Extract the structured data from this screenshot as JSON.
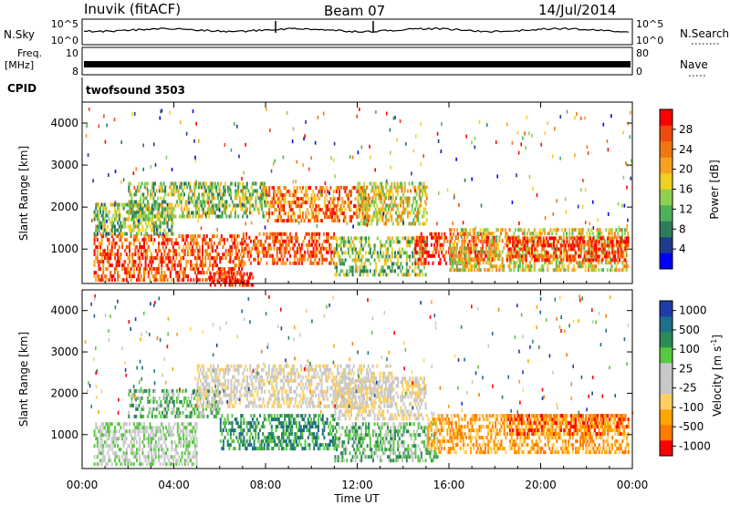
{
  "header": {
    "station": "Inuvik (fitACF)",
    "beam": "Beam 07",
    "date": "14/Jul/2014"
  },
  "top_panels": {
    "nsky_label": "N.Sky",
    "nsky_ticks": [
      "10^5",
      "10^0"
    ],
    "nsearch_label": "N.Search",
    "freq_label_1": "Freq.",
    "freq_label_2": "[MHz]",
    "freq_ticks": [
      "10",
      "8"
    ],
    "nave_label": "Nave",
    "nave_ticks": [
      "80",
      "0"
    ],
    "cpid_label": "CPID",
    "cpid_value": "twofsound 3503"
  },
  "colors": {
    "power_scale": [
      "#0000ff",
      "#1e3c8c",
      "#2e7d5a",
      "#4fb05a",
      "#8fd14f",
      "#f0d020",
      "#f7a020",
      "#f07810",
      "#f04a10",
      "#ff0000"
    ],
    "velocity_scale": [
      "#ff0000",
      "#ff7a00",
      "#ffa500",
      "#ffd060",
      "#c8c8c8",
      "#c8c8c8",
      "#58c840",
      "#2e8b57",
      "#1e6e8c",
      "#1e3caa"
    ]
  },
  "chart_data": [
    {
      "type": "heatmap",
      "name": "power-panel",
      "ylabel": "Slant Range [km]",
      "yticks": [
        "4000",
        "3000",
        "2000",
        "1000"
      ],
      "ytick_values": [
        4000,
        3000,
        2000,
        1000
      ],
      "ylim": [
        180,
        4500
      ],
      "xlim": [
        0,
        24
      ],
      "colorbar": {
        "label": "Power [dB]",
        "ticks": [
          "28",
          "24",
          "20",
          "16",
          "12",
          "8",
          "4"
        ],
        "tick_values": [
          28,
          24,
          20,
          16,
          12,
          8,
          4
        ],
        "range": [
          0,
          32
        ]
      },
      "bands": [
        {
          "t0": 0.5,
          "t1": 7.0,
          "r0": 300,
          "r1": 1350,
          "v": 26
        },
        {
          "t0": 0.5,
          "t1": 4.0,
          "r0": 1350,
          "r1": 2100,
          "v": 13
        },
        {
          "t0": 2.0,
          "t1": 8.0,
          "r0": 1800,
          "r1": 2600,
          "v": 14
        },
        {
          "t0": 7.0,
          "t1": 11.0,
          "r0": 700,
          "r1": 1400,
          "v": 26
        },
        {
          "t0": 8.0,
          "t1": 12.5,
          "r0": 1700,
          "r1": 2500,
          "v": 24
        },
        {
          "t0": 11.0,
          "t1": 15.0,
          "r0": 400,
          "r1": 1300,
          "v": 14
        },
        {
          "t0": 12.0,
          "t1": 15.0,
          "r0": 1600,
          "r1": 2600,
          "v": 17
        },
        {
          "t0": 14.5,
          "t1": 18.0,
          "r0": 700,
          "r1": 1400,
          "v": 29
        },
        {
          "t0": 16.0,
          "t1": 23.8,
          "r0": 500,
          "r1": 1500,
          "v": 18
        },
        {
          "t0": 18.5,
          "t1": 23.8,
          "r0": 750,
          "r1": 1300,
          "v": 29
        },
        {
          "t0": 5.5,
          "t1": 7.5,
          "r0": 180,
          "r1": 450,
          "v": 30
        }
      ]
    },
    {
      "type": "heatmap",
      "name": "velocity-panel",
      "ylabel": "Slant Range [km]",
      "yticks": [
        "4000",
        "3000",
        "2000",
        "1000"
      ],
      "ytick_values": [
        4000,
        3000,
        2000,
        1000
      ],
      "ylim": [
        180,
        4500
      ],
      "xlabel": "Time UT",
      "xticks": [
        "00:00",
        "04:00",
        "08:00",
        "12:00",
        "16:00",
        "20:00",
        "00:00"
      ],
      "xtick_values": [
        0,
        4,
        8,
        12,
        16,
        20,
        24
      ],
      "xlim": [
        0,
        24
      ],
      "colorbar": {
        "label": "Velocity [m s",
        "label_sup": "-1",
        "label_end": "]",
        "ticks": [
          "1000",
          "500",
          "100",
          "25",
          "-25",
          "-100",
          "-500",
          "-1000"
        ]
      },
      "bands": [
        {
          "t0": 0.5,
          "t1": 5.0,
          "r0": 300,
          "r1": 1300,
          "v": 5
        },
        {
          "t0": 2.0,
          "t1": 6.0,
          "r0": 1400,
          "r1": 2100,
          "v": 6
        },
        {
          "t0": 5.0,
          "t1": 13.5,
          "r0": 1700,
          "r1": 2700,
          "v": 4
        },
        {
          "t0": 6.0,
          "t1": 11.0,
          "r0": 700,
          "r1": 1500,
          "v": 7
        },
        {
          "t0": 11.0,
          "t1": 15.0,
          "r0": 1400,
          "r1": 2400,
          "v": 4
        },
        {
          "t0": 11.0,
          "t1": 15.5,
          "r0": 400,
          "r1": 1300,
          "v": 6
        },
        {
          "t0": 15.0,
          "t1": 23.8,
          "r0": 600,
          "r1": 1500,
          "v": 2
        },
        {
          "t0": 18.5,
          "t1": 23.8,
          "r0": 1000,
          "r1": 1500,
          "v": 1
        }
      ]
    }
  ]
}
